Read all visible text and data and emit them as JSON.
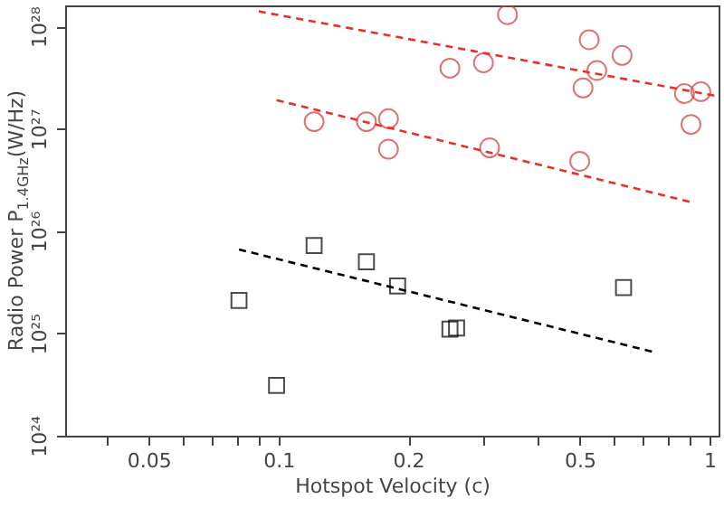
{
  "chart_data": {
    "type": "scatter",
    "xlabel": "Hotspot Velocity (c)",
    "ylabel": "Radio Power P$_{1.4GHz}$(W/Hz)",
    "log": "xy",
    "grid": false,
    "xlim": [
      0.032,
      1.05
    ],
    "ylim": [
      1e+24,
      1.6e+28
    ],
    "xticks": [
      {
        "value": 0.04,
        "label": null
      },
      0.05,
      {
        "value": 0.06,
        "label": null
      },
      {
        "value": 0.07,
        "label": null
      },
      {
        "value": 0.08,
        "label": null
      },
      {
        "value": 0.09,
        "label": null
      },
      0.1,
      0.2,
      {
        "value": 0.3,
        "label": null
      },
      {
        "value": 0.4,
        "label": null
      },
      0.5,
      {
        "value": 0.6,
        "label": null
      },
      {
        "value": 0.7,
        "label": null
      },
      {
        "value": 0.8,
        "label": null
      },
      {
        "value": 0.9,
        "label": null
      },
      1
    ],
    "yticks": [
      {
        "value": 1e+24,
        "label": "10²⁴"
      },
      {
        "value": 1e+25,
        "label": "10²⁵"
      },
      {
        "value": 1e+26,
        "label": "10²⁶"
      },
      {
        "value": 1e+27,
        "label": "10²⁷"
      },
      {
        "value": 1e+28,
        "label": "10²⁸"
      }
    ],
    "series": [
      {
        "marker": "circle",
        "color": "#d03a3a",
        "x": [
          0.34,
          0.526,
          0.627,
          0.25,
          0.299,
          0.548,
          0.509,
          0.875,
          0.955,
          0.906,
          0.16,
          0.18,
          0.18,
          0.309,
          0.5,
          0.121
        ],
        "values": [
          1.3e+28,
          7.4e+27,
          5.2e+27,
          3.9e+27,
          4.4e+27,
          3.7e+27,
          2.5e+27,
          2.2e+27,
          2.3e+27,
          1.1e+27,
          1.17e+27,
          1.25e+27,
          6.3e+26,
          6.5e+26,
          4.8e+26,
          1.17e+27
        ]
      },
      {
        "marker": "square",
        "color": "#000000",
        "x": [
          0.121,
          0.081,
          0.099,
          0.16,
          0.189,
          0.25,
          0.259,
          0.632
        ],
        "values": [
          7.2e+25,
          2.1e+25,
          3.1e+24,
          5e+25,
          2.9e+25,
          1.1e+25,
          1.13e+25,
          2.8e+25
        ]
      },
      {
        "type": "line",
        "marker": "none",
        "line_style": "dashed",
        "color": "#e8302a",
        "x": [
          0.09,
          1.03
        ],
        "values": [
          1.4e+28,
          2.1e+27
        ]
      },
      {
        "type": "line",
        "marker": "none",
        "line_style": "dashed",
        "color": "#e8302a",
        "x": [
          0.099,
          0.914
        ],
        "values": [
          1.9e+27,
          1.9e+26
        ]
      },
      {
        "type": "line",
        "marker": "none",
        "line_style": "dashed",
        "color": "#000000",
        "x": [
          0.081,
          0.75
        ],
        "values": [
          6.6e+25,
          6.5e+24
        ]
      }
    ]
  }
}
